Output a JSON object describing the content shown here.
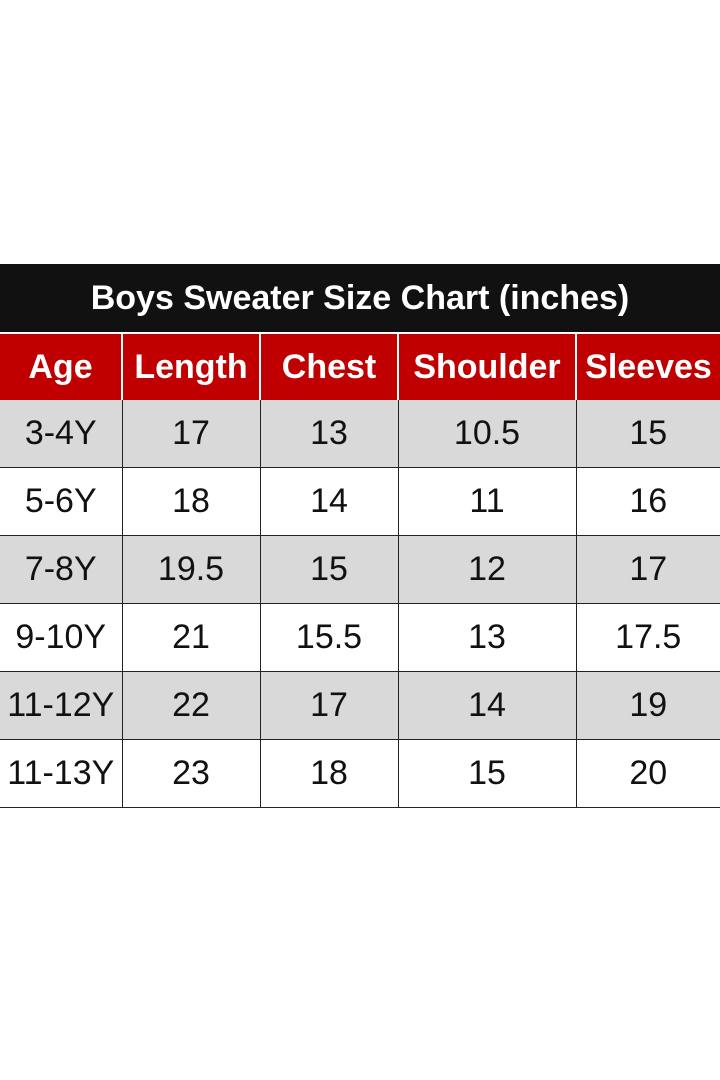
{
  "chart_data": {
    "type": "table",
    "title": "Boys Sweater Size Chart (inches)",
    "columns": [
      "Age",
      "Length",
      "Chest",
      "Shoulder",
      "Sleeves"
    ],
    "rows": [
      [
        "3-4Y",
        "17",
        "13",
        "10.5",
        "15"
      ],
      [
        "5-6Y",
        "18",
        "14",
        "11",
        "16"
      ],
      [
        "7-8Y",
        "19.5",
        "15",
        "12",
        "17"
      ],
      [
        "9-10Y",
        "21",
        "15.5",
        "13",
        "17.5"
      ],
      [
        "11-12Y",
        "22",
        "17",
        "14",
        "19"
      ],
      [
        "11-13Y",
        "23",
        "18",
        "15",
        "20"
      ]
    ]
  },
  "colors": {
    "title_bg": "#111111",
    "header_bg": "#c00000",
    "shaded_row_bg": "#d9d9d9",
    "plain_row_bg": "#ffffff"
  }
}
